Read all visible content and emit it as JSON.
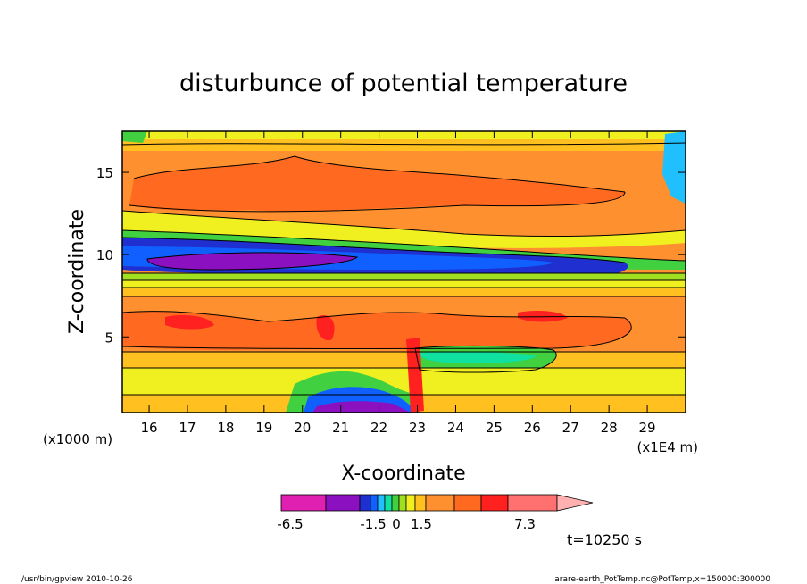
{
  "chart_data": {
    "type": "heatmap",
    "title": "disturbunce of potential temperature",
    "xlabel": "X-coordinate",
    "ylabel": "Z-coordinate",
    "x_unit_left": "(x1000 m)",
    "x_unit_right": "(x1E4 m)",
    "xlim": [
      15.3,
      30.0
    ],
    "ylim": [
      0.4,
      17.5
    ],
    "x_ticks": [
      "16",
      "17",
      "18",
      "19",
      "20",
      "21",
      "22",
      "23",
      "24",
      "25",
      "26",
      "27",
      "28",
      "29"
    ],
    "y_ticks": [
      "5",
      "10",
      "15"
    ],
    "colorbar": {
      "labels": [
        "-6.5",
        "-1.5",
        "0",
        "1.5",
        "7.3"
      ],
      "colors": [
        "#e020b0",
        "#8a10c0",
        "#2030d0",
        "#1060ff",
        "#20c0ff",
        "#10e0a0",
        "#40d040",
        "#a0e020",
        "#f0f020",
        "#ffc020",
        "#ff9030",
        "#ff6a20",
        "#ff2020",
        "#ff7070",
        "#ffb0b0"
      ]
    },
    "layers": [
      {
        "z": 17.0,
        "level": "ff9030"
      },
      {
        "z": 14.0,
        "level": "ff6a20"
      },
      {
        "z": 12.0,
        "level": "ff9030"
      },
      {
        "z": 11.0,
        "level": "f0f020"
      },
      {
        "z": 10.3,
        "level": "1060ff"
      },
      {
        "z": 9.7,
        "level": "8a10c0"
      },
      {
        "z": 8.5,
        "level": "a0e020"
      },
      {
        "z": 6.0,
        "level": "ff6a20"
      },
      {
        "z": 2.5,
        "level": "ffc020"
      },
      {
        "z": 0.8,
        "level": "f0f020"
      }
    ],
    "annotation_time": "t=10250 s"
  },
  "footer": {
    "left": "/usr/bin/gpview   2010-10-26",
    "right": "arare-earth_PotTemp.nc@PotTemp,x=150000:300000"
  }
}
